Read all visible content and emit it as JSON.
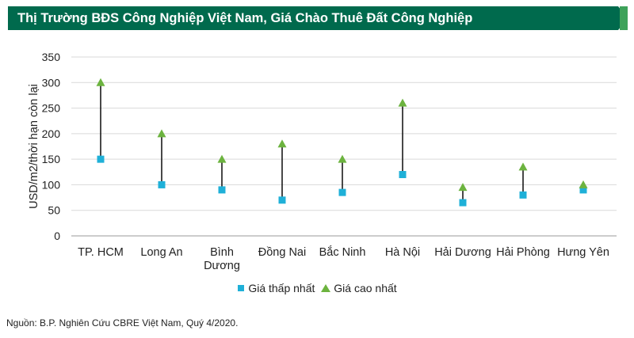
{
  "header": {
    "title": "Thị Trường BĐS Công Nghiệp Việt Nam, Giá Chào Thuê Đất Công Nghiệp",
    "banner_color": "#006a4d",
    "banner_accent": "#3ea25a"
  },
  "chart_data": {
    "type": "scatter",
    "ylabel": "USD/m2/thời hạn còn lại",
    "xlabel": "",
    "ylim": [
      0,
      350
    ],
    "yticks": [
      0,
      50,
      100,
      150,
      200,
      250,
      300,
      350
    ],
    "grid": true,
    "legend_position": "bottom",
    "categories": [
      [
        "TP. HCM"
      ],
      [
        "Long An"
      ],
      [
        "Bình",
        "Dương"
      ],
      [
        "Đồng Nai"
      ],
      [
        "Bắc Ninh"
      ],
      [
        "Hà Nội"
      ],
      [
        "Hải Dương"
      ],
      [
        "Hải Phòng"
      ],
      [
        "Hưng Yên"
      ]
    ],
    "series": [
      {
        "name": "Giá thấp nhất",
        "marker": "square",
        "color": "#1fb0d8",
        "values": [
          150,
          100,
          90,
          70,
          85,
          120,
          65,
          80,
          90
        ]
      },
      {
        "name": "Giá cao nhất",
        "marker": "triangle",
        "color": "#6cb33f",
        "values": [
          300,
          200,
          150,
          180,
          150,
          260,
          95,
          135,
          100
        ]
      }
    ]
  },
  "footer": {
    "source": "Nguồn: B.P. Nghiên Cứu CBRE Việt Nam, Quý 4/2020."
  }
}
